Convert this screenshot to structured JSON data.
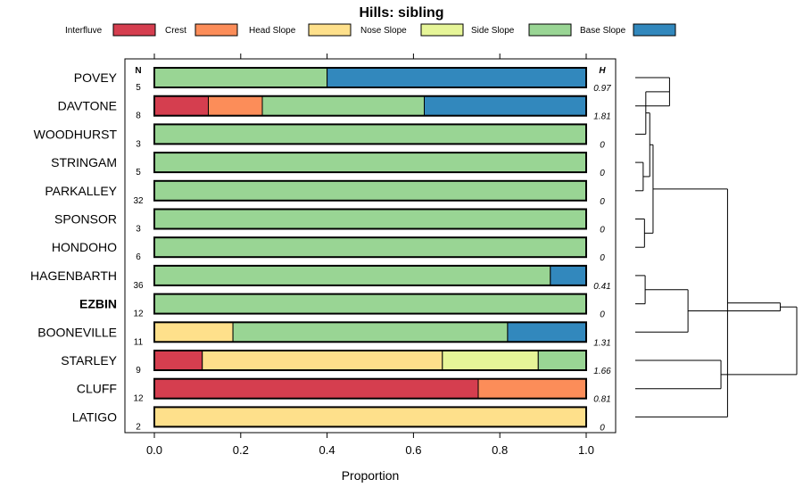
{
  "chart_data": {
    "type": "bar",
    "orientation": "horizontal",
    "stacked": true,
    "title": "Hills: sibling",
    "xlabel": "Proportion",
    "ylabel": "",
    "xlim": [
      0,
      1
    ],
    "xticks": [
      "0.0",
      "0.2",
      "0.4",
      "0.6",
      "0.8",
      "1.0"
    ],
    "n_header": "N",
    "h_header": "H",
    "legend_position": "top",
    "series": [
      {
        "name": "Interfluve",
        "color": "#d53e4f"
      },
      {
        "name": "Crest",
        "color": "#fc8d59"
      },
      {
        "name": "Head Slope",
        "color": "#fee08b"
      },
      {
        "name": "Nose Slope",
        "color": "#e6f598"
      },
      {
        "name": "Side Slope",
        "color": "#99d594"
      },
      {
        "name": "Base Slope",
        "color": "#3288bd"
      }
    ],
    "rows": [
      {
        "label": "POVEY",
        "bold": false,
        "n": "5",
        "h": "0.97",
        "values": [
          0,
          0,
          0,
          0,
          0.4,
          0.6
        ]
      },
      {
        "label": "DAVTONE",
        "bold": false,
        "n": "8",
        "h": "1.81",
        "values": [
          0.125,
          0.125,
          0,
          0,
          0.375,
          0.375
        ]
      },
      {
        "label": "WOODHURST",
        "bold": false,
        "n": "3",
        "h": "0",
        "values": [
          0,
          0,
          0,
          0,
          1,
          0
        ]
      },
      {
        "label": "STRINGAM",
        "bold": false,
        "n": "5",
        "h": "0",
        "values": [
          0,
          0,
          0,
          0,
          1,
          0
        ]
      },
      {
        "label": "PARKALLEY",
        "bold": false,
        "n": "32",
        "h": "0",
        "values": [
          0,
          0,
          0,
          0,
          1,
          0
        ]
      },
      {
        "label": "SPONSOR",
        "bold": false,
        "n": "3",
        "h": "0",
        "values": [
          0,
          0,
          0,
          0,
          1,
          0
        ]
      },
      {
        "label": "HONDOHO",
        "bold": false,
        "n": "6",
        "h": "0",
        "values": [
          0,
          0,
          0,
          0,
          1,
          0
        ]
      },
      {
        "label": "HAGENBARTH",
        "bold": false,
        "n": "36",
        "h": "0.41",
        "values": [
          0,
          0,
          0,
          0,
          0.917,
          0.083
        ]
      },
      {
        "label": "EZBIN",
        "bold": true,
        "n": "12",
        "h": "0",
        "values": [
          0,
          0,
          0,
          0,
          1,
          0
        ]
      },
      {
        "label": "BOONEVILLE",
        "bold": false,
        "n": "11",
        "h": "1.31",
        "values": [
          0,
          0,
          0.182,
          0,
          0.636,
          0.182
        ]
      },
      {
        "label": "STARLEY",
        "bold": false,
        "n": "9",
        "h": "1.66",
        "values": [
          0.111,
          0,
          0.556,
          0.222,
          0.111,
          0
        ]
      },
      {
        "label": "CLUFF",
        "bold": false,
        "n": "12",
        "h": "0.81",
        "values": [
          0.75,
          0.25,
          0,
          0,
          0,
          0
        ]
      },
      {
        "label": "LATIGO",
        "bold": false,
        "n": "2",
        "h": "0",
        "values": [
          0,
          0,
          1,
          0,
          0,
          0
        ]
      }
    ],
    "dendrogram": {
      "leaf_order": [
        "POVEY",
        "DAVTONE",
        "WOODHURST",
        "STRINGAM",
        "PARKALLEY",
        "SPONSOR",
        "HONDOHO",
        "HAGENBARTH",
        "EZBIN",
        "BOONEVILLE",
        "STARLEY",
        "CLUFF",
        "LATIGO"
      ],
      "merges": [
        [
          0,
          1,
          0.52
        ],
        [
          3,
          4,
          0.12
        ],
        [
          2,
          13,
          0.16
        ],
        [
          5,
          6,
          0.14
        ],
        [
          14,
          15,
          0.22
        ],
        [
          7,
          8,
          0.15
        ],
        [
          16,
          17,
          0.27
        ],
        [
          18,
          9,
          0.8
        ],
        [
          12,
          19,
          1.4
        ],
        [
          10,
          11,
          1.3
        ],
        [
          20,
          21,
          2.2
        ],
        [
          22,
          23,
          2.45
        ]
      ]
    }
  }
}
